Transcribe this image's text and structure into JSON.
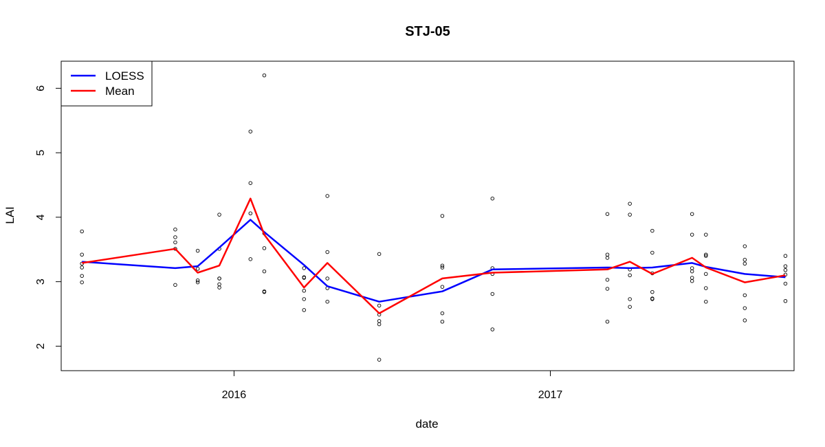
{
  "chart_data": {
    "type": "scatter",
    "title": "STJ-05",
    "xlabel": "date",
    "ylabel": "LAI",
    "x_ticks": [
      {
        "date": "2016-01-01",
        "label": "2016"
      },
      {
        "date": "2017-01-01",
        "label": "2017"
      }
    ],
    "y_ticks": [
      2,
      3,
      4,
      5,
      6
    ],
    "xlim": [
      "2015-06-15",
      "2017-10-10"
    ],
    "ylim": [
      1.62,
      6.42
    ],
    "grid": false,
    "legend": {
      "placement": "top-left",
      "entries": [
        {
          "name": "LOESS",
          "color": "#0000ff"
        },
        {
          "name": "Mean",
          "color": "#ff0000"
        }
      ]
    },
    "points": [
      {
        "date": "2015-07-09",
        "values": [
          3.78,
          3.42,
          3.28,
          3.22,
          3.09,
          2.99
        ]
      },
      {
        "date": "2015-10-25",
        "values": [
          3.81,
          3.69,
          3.61,
          3.51,
          2.95
        ]
      },
      {
        "date": "2015-11-20",
        "values": [
          3.48,
          3.2,
          3.02,
          2.99
        ]
      },
      {
        "date": "2015-12-15",
        "values": [
          4.04,
          3.51,
          3.05,
          3.05,
          2.96,
          2.91
        ]
      },
      {
        "date": "2016-01-20",
        "values": [
          5.33,
          4.53,
          4.06,
          3.35
        ]
      },
      {
        "date": "2016-02-05",
        "values": [
          6.2,
          3.75,
          3.52,
          3.16,
          2.85,
          2.84
        ]
      },
      {
        "date": "2016-03-22",
        "values": [
          3.21,
          3.07,
          3.06,
          2.86,
          2.73,
          2.56
        ]
      },
      {
        "date": "2016-04-18",
        "values": [
          4.33,
          3.46,
          3.05,
          2.9,
          2.69
        ]
      },
      {
        "date": "2016-06-17",
        "values": [
          3.43,
          2.63,
          2.49,
          2.39,
          2.34,
          1.79
        ]
      },
      {
        "date": "2016-08-29",
        "values": [
          4.02,
          3.25,
          3.22,
          2.92,
          2.51,
          2.38
        ]
      },
      {
        "date": "2016-10-26",
        "values": [
          4.29,
          3.21,
          3.12,
          2.81,
          2.26
        ]
      },
      {
        "date": "2017-03-08",
        "values": [
          4.05,
          3.42,
          3.37,
          3.03,
          2.89,
          2.38
        ]
      },
      {
        "date": "2017-04-03",
        "values": [
          4.21,
          4.04,
          3.19,
          3.1,
          2.73,
          2.61
        ]
      },
      {
        "date": "2017-04-29",
        "values": [
          3.79,
          3.45,
          3.13,
          2.84,
          2.74,
          2.73
        ]
      },
      {
        "date": "2017-06-14",
        "values": [
          4.05,
          3.73,
          3.21,
          3.16,
          3.06,
          3.01
        ]
      },
      {
        "date": "2017-06-30",
        "values": [
          3.73,
          3.42,
          3.4,
          3.12,
          2.9,
          2.69
        ]
      },
      {
        "date": "2017-08-14",
        "values": [
          3.55,
          3.34,
          3.28,
          2.79,
          2.59,
          2.4
        ]
      },
      {
        "date": "2017-09-30",
        "values": [
          3.4,
          3.24,
          3.18,
          3.11,
          2.97,
          2.7
        ]
      }
    ],
    "series": [
      {
        "name": "LOESS",
        "color": "#0000ff",
        "dates": [
          "2015-07-09",
          "2015-10-25",
          "2015-11-20",
          "2015-12-15",
          "2016-01-20",
          "2016-02-05",
          "2016-03-22",
          "2016-04-18",
          "2016-06-17",
          "2016-08-29",
          "2016-10-26",
          "2017-03-08",
          "2017-04-03",
          "2017-04-29",
          "2017-06-14",
          "2017-06-30",
          "2017-08-14",
          "2017-09-30"
        ],
        "values": [
          3.31,
          3.21,
          3.24,
          3.53,
          3.96,
          3.77,
          3.26,
          2.93,
          2.69,
          2.85,
          3.19,
          3.22,
          3.21,
          3.22,
          3.29,
          3.23,
          3.12,
          3.07
        ]
      },
      {
        "name": "Mean",
        "color": "#ff0000",
        "dates": [
          "2015-07-09",
          "2015-10-25",
          "2015-11-20",
          "2015-12-15",
          "2016-01-20",
          "2016-02-05",
          "2016-03-22",
          "2016-04-18",
          "2016-06-17",
          "2016-08-29",
          "2016-10-26",
          "2017-03-08",
          "2017-04-03",
          "2017-04-29",
          "2017-06-14",
          "2017-06-30",
          "2017-08-14",
          "2017-09-30"
        ],
        "values": [
          3.29,
          3.51,
          3.14,
          3.25,
          4.29,
          3.73,
          2.91,
          3.29,
          2.51,
          3.05,
          3.14,
          3.19,
          3.31,
          3.12,
          3.37,
          3.22,
          2.99,
          3.1
        ]
      }
    ]
  }
}
